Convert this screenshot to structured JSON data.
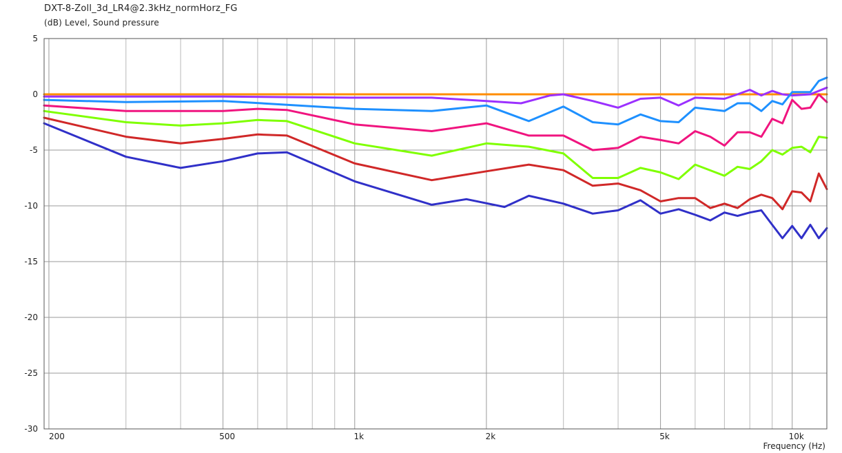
{
  "chart_data": {
    "type": "line",
    "title": "DXT-8-Zoll_3d_LR4@2.3kHz_normHorz_FG",
    "ylabel": "(dB)  Level, Sound pressure",
    "xlabel": "Frequency  (Hz)",
    "x_scale": "log",
    "xlim": [
      195,
      12000
    ],
    "ylim": [
      -30,
      5
    ],
    "y_ticks": [
      5,
      0,
      -5,
      -10,
      -15,
      -20,
      -25,
      -30
    ],
    "y_tick_labels": [
      "5",
      "0",
      "-5",
      "-10",
      "-15",
      "-20",
      "-25",
      "-30"
    ],
    "x_ticks": [
      200,
      500,
      1000,
      2000,
      5000,
      10000
    ],
    "x_tick_labels": [
      "200",
      "500",
      "1k",
      "2k",
      "5k",
      "10k"
    ],
    "x_minor_ticks": [
      300,
      400,
      600,
      700,
      800,
      900,
      3000,
      4000,
      6000,
      7000,
      8000,
      9000
    ],
    "grid": true,
    "legend": "none",
    "series": [
      {
        "color": "#ff8c00",
        "x": [
          195,
          500,
          1000,
          2000,
          5000,
          10000,
          12000
        ],
        "y": [
          0,
          0,
          0,
          0,
          0,
          0,
          0
        ]
      },
      {
        "color": "#9b30ff",
        "x": [
          195,
          300,
          500,
          1000,
          1500,
          2000,
          2400,
          2800,
          3000,
          3500,
          4000,
          4500,
          5000,
          5500,
          6000,
          7000,
          7500,
          8000,
          8500,
          9000,
          9500,
          10000,
          11000,
          12000
        ],
        "y": [
          -0.2,
          -0.2,
          -0.2,
          -0.3,
          -0.3,
          -0.6,
          -0.8,
          -0.1,
          0.0,
          -0.6,
          -1.2,
          -0.4,
          -0.3,
          -1.0,
          -0.3,
          -0.4,
          0.0,
          0.4,
          -0.1,
          0.3,
          0.0,
          -0.1,
          0.0,
          0.6
        ]
      },
      {
        "color": "#1e90ff",
        "x": [
          195,
          300,
          500,
          1000,
          1500,
          2000,
          2500,
          3000,
          3500,
          4000,
          4500,
          5000,
          5500,
          6000,
          7000,
          7500,
          8000,
          8500,
          9000,
          9500,
          10000,
          11000,
          11500,
          12000
        ],
        "y": [
          -0.5,
          -0.7,
          -0.6,
          -1.3,
          -1.5,
          -1.0,
          -2.4,
          -1.1,
          -2.5,
          -2.7,
          -1.8,
          -2.4,
          -2.5,
          -1.2,
          -1.5,
          -0.8,
          -0.8,
          -1.5,
          -0.6,
          -0.9,
          0.2,
          0.2,
          1.2,
          1.5
        ]
      },
      {
        "color": "#f0147f",
        "x": [
          195,
          300,
          500,
          600,
          700,
          1000,
          1500,
          2000,
          2500,
          3000,
          3500,
          4000,
          4500,
          5000,
          5500,
          6000,
          6500,
          7000,
          7500,
          8000,
          8500,
          9000,
          9500,
          10000,
          10500,
          11000,
          11500,
          12000
        ],
        "y": [
          -1.0,
          -1.5,
          -1.5,
          -1.3,
          -1.4,
          -2.7,
          -3.3,
          -2.6,
          -3.7,
          -3.7,
          -5.0,
          -4.8,
          -3.8,
          -4.1,
          -4.4,
          -3.3,
          -3.8,
          -4.6,
          -3.4,
          -3.4,
          -3.8,
          -2.2,
          -2.6,
          -0.5,
          -1.3,
          -1.2,
          0.0,
          -0.7
        ]
      },
      {
        "color": "#7fff00",
        "x": [
          195,
          300,
          400,
          500,
          600,
          700,
          1000,
          1500,
          2000,
          2500,
          3000,
          3500,
          4000,
          4500,
          5000,
          5500,
          6000,
          7000,
          7500,
          8000,
          8500,
          9000,
          9500,
          10000,
          10500,
          11000,
          11500,
          12000
        ],
        "y": [
          -1.5,
          -2.5,
          -2.8,
          -2.6,
          -2.3,
          -2.4,
          -4.4,
          -5.5,
          -4.4,
          -4.7,
          -5.3,
          -7.5,
          -7.5,
          -6.6,
          -7.0,
          -7.6,
          -6.3,
          -7.3,
          -6.5,
          -6.7,
          -6.0,
          -5.0,
          -5.4,
          -4.8,
          -4.7,
          -5.2,
          -3.8,
          -3.9
        ]
      },
      {
        "color": "#d02828",
        "x": [
          195,
          300,
          400,
          500,
          600,
          700,
          1000,
          1500,
          2000,
          2500,
          3000,
          3500,
          4000,
          4500,
          5000,
          5500,
          6000,
          6500,
          7000,
          7500,
          8000,
          8500,
          9000,
          9500,
          10000,
          10500,
          11000,
          11500,
          12000
        ],
        "y": [
          -2.1,
          -3.8,
          -4.4,
          -4.0,
          -3.6,
          -3.7,
          -6.2,
          -7.7,
          -6.9,
          -6.3,
          -6.8,
          -8.2,
          -8.0,
          -8.6,
          -9.6,
          -9.3,
          -9.3,
          -10.2,
          -9.8,
          -10.2,
          -9.4,
          -9.0,
          -9.3,
          -10.3,
          -8.7,
          -8.8,
          -9.6,
          -7.1,
          -8.5
        ]
      },
      {
        "color": "#3030c8",
        "x": [
          195,
          300,
          400,
          500,
          600,
          700,
          1000,
          1500,
          1800,
          2200,
          2500,
          3000,
          3500,
          4000,
          4500,
          5000,
          5500,
          6000,
          6500,
          7000,
          7500,
          8000,
          8500,
          9000,
          9500,
          10000,
          10500,
          11000,
          11500,
          12000
        ],
        "y": [
          -2.6,
          -5.6,
          -6.6,
          -6.0,
          -5.3,
          -5.2,
          -7.8,
          -9.9,
          -9.4,
          -10.1,
          -9.1,
          -9.8,
          -10.7,
          -10.4,
          -9.5,
          -10.7,
          -10.3,
          -10.8,
          -11.3,
          -10.6,
          -10.9,
          -10.6,
          -10.4,
          -11.7,
          -12.9,
          -11.8,
          -12.9,
          -11.7,
          -12.9,
          -12.0
        ]
      }
    ]
  }
}
